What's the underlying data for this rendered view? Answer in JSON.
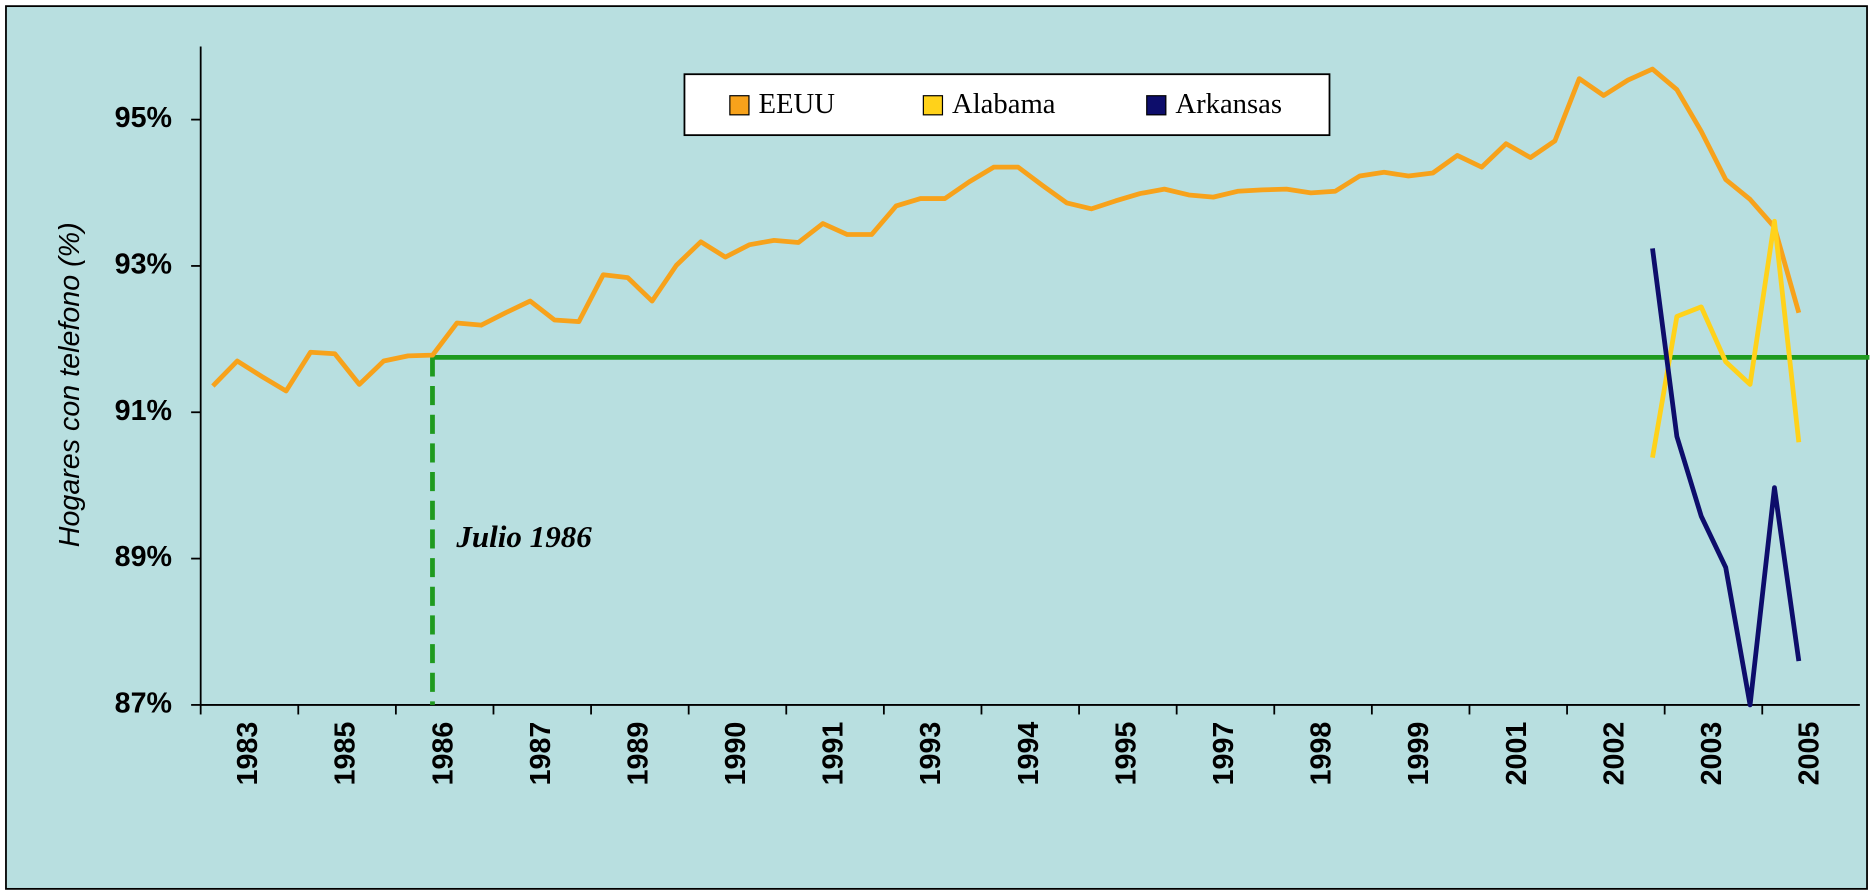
{
  "chart_data": {
    "type": "line",
    "y_label": "Hogares con telefono (%)",
    "categories": [
      "1983",
      null,
      null,
      null,
      "1985",
      null,
      null,
      null,
      "1986",
      null,
      null,
      null,
      "1987",
      null,
      null,
      null,
      "1989",
      null,
      null,
      null,
      "1990",
      null,
      null,
      null,
      "1991",
      null,
      null,
      null,
      "1993",
      null,
      null,
      null,
      "1994",
      null,
      null,
      null,
      "1995",
      null,
      null,
      null,
      "1997",
      null,
      null,
      null,
      "1998",
      null,
      null,
      null,
      "1999",
      null,
      null,
      null,
      "2001",
      null,
      null,
      null,
      "2002",
      null,
      null,
      null,
      "2003",
      null,
      null,
      null,
      "2005",
      null,
      null,
      null
    ],
    "series": [
      {
        "name": "EEUU",
        "color": "#f7a21b",
        "values": [
          91.36,
          91.7,
          91.49,
          91.29,
          91.82,
          91.8,
          91.38,
          91.7,
          91.77,
          91.78,
          92.22,
          92.19,
          92.36,
          92.52,
          92.26,
          92.24,
          92.88,
          92.84,
          92.52,
          93.01,
          93.33,
          93.12,
          93.29,
          93.35,
          93.32,
          93.58,
          93.43,
          93.43,
          93.82,
          93.92,
          93.92,
          94.15,
          94.35,
          94.35,
          94.1,
          93.86,
          93.78,
          93.89,
          93.99,
          94.05,
          93.97,
          93.94,
          94.02,
          94.04,
          94.05,
          94.0,
          94.02,
          94.23,
          94.28,
          94.23,
          94.27,
          94.51,
          94.35,
          94.67,
          94.48,
          94.71,
          95.56,
          95.33,
          95.54,
          95.69,
          95.41,
          94.84,
          94.18,
          93.91,
          93.53,
          92.36,
          null,
          null
        ]
      },
      {
        "name": "Alabama",
        "color": "#ffd21a",
        "values": [
          null,
          null,
          null,
          null,
          null,
          null,
          null,
          null,
          null,
          null,
          null,
          null,
          null,
          null,
          null,
          null,
          null,
          null,
          null,
          null,
          null,
          null,
          null,
          null,
          null,
          null,
          null,
          null,
          null,
          null,
          null,
          null,
          null,
          null,
          null,
          null,
          null,
          null,
          null,
          null,
          null,
          null,
          null,
          null,
          null,
          null,
          null,
          null,
          null,
          null,
          null,
          null,
          null,
          null,
          null,
          null,
          null,
          null,
          null,
          90.38,
          92.31,
          92.44,
          91.69,
          91.38,
          93.61,
          90.59,
          null,
          null
        ]
      },
      {
        "name": "Arkansas",
        "color": "#0d0d6b",
        "values": [
          null,
          null,
          null,
          null,
          null,
          null,
          null,
          null,
          null,
          null,
          null,
          null,
          null,
          null,
          null,
          null,
          null,
          null,
          null,
          null,
          null,
          null,
          null,
          null,
          null,
          null,
          null,
          null,
          null,
          null,
          null,
          null,
          null,
          null,
          null,
          null,
          null,
          null,
          null,
          null,
          null,
          null,
          null,
          null,
          null,
          null,
          null,
          null,
          null,
          null,
          null,
          null,
          null,
          null,
          null,
          null,
          null,
          null,
          null,
          93.24,
          90.67,
          89.58,
          88.88,
          87.0,
          89.97,
          87.6,
          null,
          null
        ]
      }
    ],
    "reference": {
      "label": "Julio 1986",
      "start": 9,
      "value": 91.75,
      "color": "#1f9a1f"
    },
    "ylim": [
      87,
      96
    ],
    "yticks": [
      {
        "value": 87,
        "label": "87%"
      },
      {
        "value": 89,
        "label": "89%"
      },
      {
        "value": 91,
        "label": "91%"
      },
      {
        "value": 93,
        "label": "93%"
      },
      {
        "value": 95,
        "label": "95%"
      }
    ],
    "legend": "top"
  }
}
